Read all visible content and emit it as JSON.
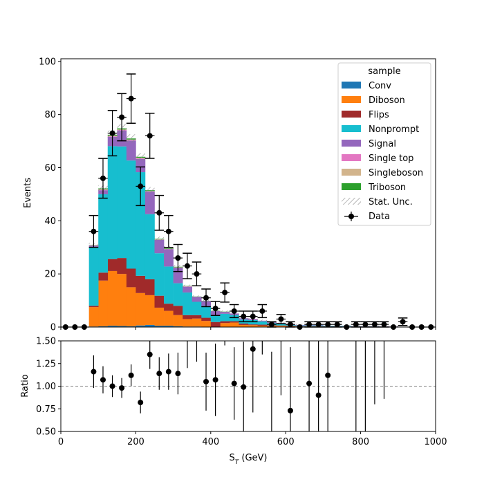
{
  "chart_data": [
    {
      "type": "bar",
      "stacked": true,
      "ylabel": "Events",
      "xlim": [
        0,
        1000
      ],
      "ylim": [
        0,
        101
      ],
      "yticks": [
        0,
        20,
        40,
        60,
        80,
        100
      ],
      "bin_edges": [
        0,
        25,
        50,
        75,
        100,
        125,
        150,
        175,
        200,
        225,
        250,
        275,
        300,
        325,
        350,
        375,
        400,
        425,
        450,
        475,
        500,
        525,
        550,
        575,
        600,
        625,
        650,
        675,
        700,
        725,
        750,
        775,
        800,
        825,
        850,
        875,
        900,
        925,
        950,
        975,
        1000
      ],
      "series": [
        {
          "name": "Conv",
          "color": "#1f77b4",
          "values": [
            0,
            0,
            0,
            0.2,
            0.3,
            0.5,
            0.4,
            0.3,
            0.6,
            0.8,
            0.5,
            0.5,
            0.3,
            0.2,
            0.2,
            0.1,
            0.1,
            0.1,
            0.1,
            0,
            0,
            0,
            0,
            0,
            0,
            0,
            0,
            0,
            0,
            0,
            0,
            0,
            0,
            0,
            0,
            0,
            0,
            0,
            0,
            0
          ]
        },
        {
          "name": "Diboson",
          "color": "#ff7f0e",
          "values": [
            0,
            0,
            0,
            7.3,
            17.2,
            20.6,
            19.6,
            14.7,
            12.2,
            11.2,
            6.8,
            5.6,
            4.2,
            2.8,
            3.0,
            2.2,
            0,
            1.4,
            1.6,
            0.8,
            0.7,
            0.5,
            0.5,
            0.4,
            0.3,
            0.2,
            0.2,
            0.2,
            0.1,
            0.1,
            0.1,
            0.1,
            0.1,
            0.1,
            0,
            0,
            0,
            0,
            0,
            0
          ]
        },
        {
          "name": "Flips",
          "color": "#a02a2a",
          "values": [
            0,
            0,
            0,
            0.5,
            3,
            4.5,
            6,
            7,
            6.5,
            6,
            4.5,
            2.7,
            3.5,
            1.5,
            1.3,
            1.2,
            1.8,
            0.7,
            0.5,
            0.5,
            0.3,
            0.4,
            0.2,
            0.2,
            0.2,
            0.1,
            0.1,
            0.1,
            0.1,
            0.1,
            0.1,
            0.1,
            0,
            0,
            0,
            0,
            0,
            0,
            0,
            0
          ]
        },
        {
          "name": "Nonprompt",
          "color": "#17becf",
          "values": [
            0,
            0,
            0,
            22,
            29.5,
            42.5,
            42,
            40.7,
            39,
            24.5,
            16,
            14,
            8.5,
            8.5,
            5,
            4.5,
            2.6,
            2.8,
            2.3,
            1.5,
            1.6,
            1.2,
            0.8,
            0.6,
            0.3,
            0.3,
            0.3,
            0.3,
            0.2,
            0.2,
            0.2,
            0.1,
            0.1,
            0.1,
            0.1,
            0.1,
            0,
            0,
            0,
            0
          ]
        },
        {
          "name": "Signal",
          "color": "#9467bd",
          "values": [
            0,
            0,
            0,
            0.6,
            1.5,
            3.5,
            6,
            7.5,
            5,
            8.5,
            5,
            6.5,
            5.8,
            2.2,
            1.9,
            1.8,
            1.5,
            0.7,
            0.6,
            0.5,
            0.4,
            0.3,
            0.3,
            0.3,
            0.2,
            0.2,
            0.2,
            0.2,
            0.1,
            0.1,
            0.1,
            0.1,
            0.1,
            0.1,
            0.1,
            0.1,
            0,
            0,
            0,
            0
          ]
        },
        {
          "name": "Single top",
          "color": "#e377c2",
          "values": [
            0,
            0,
            0,
            0.1,
            0.2,
            0.2,
            0.2,
            0.2,
            0.2,
            0.1,
            0.1,
            0.1,
            0.1,
            0.1,
            0,
            0,
            0,
            0,
            0,
            0,
            0,
            0,
            0,
            0,
            0,
            0,
            0,
            0,
            0,
            0,
            0,
            0,
            0,
            0,
            0,
            0,
            0,
            0,
            0,
            0
          ]
        },
        {
          "name": "Singleboson",
          "color": "#d2b48c",
          "values": [
            0,
            0,
            0,
            0.1,
            0.2,
            0.2,
            0.2,
            0.2,
            0.2,
            0.1,
            0.1,
            0.1,
            0.1,
            0.1,
            0,
            0,
            0,
            0,
            0,
            0,
            0,
            0,
            0,
            0,
            0,
            0,
            0,
            0,
            0,
            0,
            0,
            0,
            0,
            0,
            0,
            0,
            0,
            0,
            0,
            0
          ]
        },
        {
          "name": "Triboson",
          "color": "#2ca02c",
          "values": [
            0,
            0,
            0,
            0.1,
            0.3,
            0.4,
            0.4,
            0.4,
            0.4,
            0.3,
            0.2,
            0.2,
            0.2,
            0.1,
            0.1,
            0.1,
            0.1,
            0.1,
            0,
            0,
            0,
            0,
            0,
            0,
            0,
            0,
            0,
            0,
            0,
            0,
            0,
            0,
            0,
            0,
            0,
            0,
            0,
            0,
            0,
            0
          ]
        }
      ],
      "stat_unc_label": "Stat. Unc.",
      "data": {
        "name": "Data",
        "x": [
          12.5,
          37.5,
          62.5,
          87.5,
          112.5,
          137.5,
          162.5,
          187.5,
          212.5,
          237.5,
          262.5,
          287.5,
          312.5,
          337.5,
          362.5,
          387.5,
          412.5,
          437.5,
          462.5,
          487.5,
          512.5,
          537.5,
          562.5,
          587.5,
          612.5,
          637.5,
          662.5,
          687.5,
          712.5,
          737.5,
          762.5,
          787.5,
          812.5,
          837.5,
          862.5,
          887.5,
          912.5,
          937.5,
          962.5,
          987.5
        ],
        "y": [
          0,
          0,
          0,
          36,
          56,
          73,
          79,
          86,
          53,
          72,
          43,
          36,
          26,
          23,
          20,
          11,
          7,
          13,
          6,
          4,
          4,
          6,
          1,
          3,
          1,
          0,
          1,
          1,
          1,
          1,
          0,
          1,
          1,
          1,
          1,
          0,
          2,
          0,
          0,
          0
        ]
      },
      "legend": {
        "title": "sample",
        "position": "upper right"
      }
    },
    {
      "type": "scatter",
      "xlabel": "S_T (GeV)",
      "ylabel": "Ratio",
      "xlim": [
        0,
        1000
      ],
      "ylim": [
        0.5,
        1.5
      ],
      "yticks": [
        0.5,
        0.75,
        1.0,
        1.25,
        1.5
      ],
      "xticks": [
        0,
        200,
        400,
        600,
        800,
        1000
      ],
      "reference_line": 1.0,
      "points": [
        {
          "x": 87.5,
          "y": 1.16,
          "err": 0.18
        },
        {
          "x": 112.5,
          "y": 1.07,
          "err": 0.15
        },
        {
          "x": 137.5,
          "y": 1.0,
          "err": 0.12
        },
        {
          "x": 162.5,
          "y": 0.98,
          "err": 0.11
        },
        {
          "x": 187.5,
          "y": 1.12,
          "err": 0.12
        },
        {
          "x": 212.5,
          "y": 0.82,
          "err": 0.12
        },
        {
          "x": 237.5,
          "y": 1.35,
          "err": 0.16
        },
        {
          "x": 262.5,
          "y": 1.14,
          "err": 0.18
        },
        {
          "x": 287.5,
          "y": 1.16,
          "err": 0.2
        },
        {
          "x": 312.5,
          "y": 1.14,
          "err": 0.23
        },
        {
          "x": 337.5,
          "y": null,
          "err_lo": 1.2,
          "err_hi": 1.6
        },
        {
          "x": 362.5,
          "y": null,
          "err_lo": 1.27,
          "err_hi": 1.6
        },
        {
          "x": 387.5,
          "y": 1.05,
          "err": 0.32
        },
        {
          "x": 412.5,
          "y": 1.07,
          "err": 0.4
        },
        {
          "x": 437.5,
          "y": null,
          "err_lo": 1.45,
          "err_hi": 1.6
        },
        {
          "x": 462.5,
          "y": 1.03,
          "err": 0.4
        },
        {
          "x": 487.5,
          "y": 0.99,
          "err": 0.5
        },
        {
          "x": 512.5,
          "y": 1.41,
          "err": 0.7
        },
        {
          "x": 537.5,
          "y": null,
          "err_lo": 1.35,
          "err_hi": 1.6
        },
        {
          "x": 562.5,
          "y": null,
          "err_lo": 0.5,
          "err_hi": 1.38
        },
        {
          "x": 587.5,
          "y": null,
          "err_lo": 0.9,
          "err_hi": 1.6
        },
        {
          "x": 612.5,
          "y": 0.73,
          "err": 0.7
        },
        {
          "x": 662.5,
          "y": 1.03,
          "err": 0.8
        },
        {
          "x": 687.5,
          "y": 0.9,
          "err": 0.7
        },
        {
          "x": 712.5,
          "y": 1.12,
          "err": 0.8
        },
        {
          "x": 787.5,
          "y": null,
          "err_lo": 0.5,
          "err_hi": 1.6
        },
        {
          "x": 812.5,
          "y": null,
          "err_lo": 0.5,
          "err_hi": 1.6
        },
        {
          "x": 837.5,
          "y": null,
          "err_lo": 0.8,
          "err_hi": 1.6
        },
        {
          "x": 862.5,
          "y": null,
          "err_lo": 0.86,
          "err_hi": 1.6
        }
      ]
    }
  ]
}
